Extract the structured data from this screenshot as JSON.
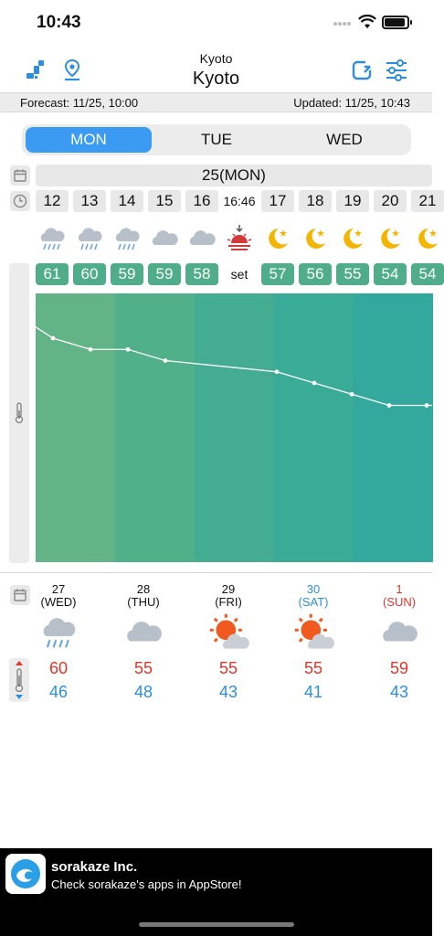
{
  "status_bar": {
    "time": "10:43"
  },
  "header": {
    "location_small": "Kyoto",
    "location_title": "Kyoto"
  },
  "info": {
    "forecast": "Forecast: 11/25, 10:00",
    "updated": "Updated: 11/25, 10:43"
  },
  "tabs": [
    {
      "label": "MON",
      "active": true
    },
    {
      "label": "TUE",
      "active": false
    },
    {
      "label": "WED",
      "active": false
    }
  ],
  "day_header": "25(MON)",
  "hours": [
    "12",
    "13",
    "14",
    "15",
    "16",
    "16:46",
    "17",
    "18",
    "19",
    "20",
    "21"
  ],
  "hour_icons": [
    "rain-cloud-icon",
    "rain-cloud-icon",
    "rain-cloud-icon",
    "cloud-icon",
    "cloud-icon",
    "sunset-icon",
    "moon-star-icon",
    "moon-star-icon",
    "moon-star-icon",
    "moon-star-icon",
    "moon-star-icon"
  ],
  "temps": [
    "61",
    "60",
    "59",
    "59",
    "58",
    "set",
    "57",
    "56",
    "55",
    "54",
    "54"
  ],
  "chart_data": {
    "type": "line",
    "x": [
      "12",
      "13",
      "14",
      "15",
      "16",
      "17",
      "18",
      "19",
      "20",
      "21"
    ],
    "series": [
      {
        "values": [
          61,
          60,
          59,
          59,
          58,
          57,
          56,
          55,
          54,
          54
        ]
      }
    ],
    "grid": false,
    "colors": {
      "line": "#ffffff",
      "band_a": "#62b487",
      "band_b": "#4fb089",
      "band_c": "#44ad91",
      "band_d": "#3aab97",
      "band_e": "#33a99d"
    }
  },
  "week": [
    {
      "date": "27",
      "dow": "(WED)",
      "icon": "rain-cloud-icon",
      "hi": "60",
      "lo": "46",
      "color": "#111111"
    },
    {
      "date": "28",
      "dow": "(THU)",
      "icon": "cloud-icon",
      "hi": "55",
      "lo": "48",
      "color": "#111111"
    },
    {
      "date": "29",
      "dow": "(FRI)",
      "icon": "sun-cloud-icon",
      "hi": "55",
      "lo": "43",
      "color": "#111111"
    },
    {
      "date": "30",
      "dow": "(SAT)",
      "icon": "sun-cloud-icon",
      "hi": "55",
      "lo": "41",
      "color": "#2b8fe0"
    },
    {
      "date": "1",
      "dow": "(SUN)",
      "icon": "cloud-icon",
      "hi": "59",
      "lo": "43",
      "color": "#e0352b"
    }
  ],
  "ad": {
    "company": "sorakaze Inc.",
    "message": "Check sorakaze's apps in AppStore!"
  }
}
